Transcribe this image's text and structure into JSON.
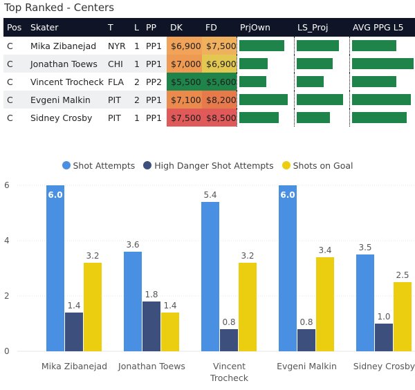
{
  "header": {
    "title": "Top Ranked - Centers"
  },
  "table": {
    "columns": [
      "Pos",
      "Skater",
      "T",
      "L",
      "PP",
      "DK",
      "FD",
      "PrjOwn",
      "LS_Proj",
      "AVG PPG L5"
    ],
    "rows": [
      {
        "pos": "C",
        "skater": "Mika Zibanejad",
        "team": "NYR",
        "line": "1",
        "pp": "PP1",
        "dk": "$6,900",
        "fd": "$7,500",
        "dk_color": "#f2a35a",
        "fd_color": "#f0b15e",
        "prjown": 0.8,
        "ls_proj": 0.78,
        "avg_ppg_l5": 0.68
      },
      {
        "pos": "C",
        "skater": "Jonathan Toews",
        "team": "CHI",
        "line": "1",
        "pp": "PP1",
        "dk": "$7,000",
        "fd": "$6,900",
        "dk_color": "#ee9a52",
        "fd_color": "#e2c850",
        "prjown": 0.5,
        "ls_proj": 0.66,
        "avg_ppg_l5": 0.95
      },
      {
        "pos": "C",
        "skater": "Vincent Trocheck",
        "team": "FLA",
        "line": "2",
        "pp": "PP2",
        "dk": "$5,500",
        "fd": "$5,600",
        "dk_color": "#1e8449",
        "fd_color": "#1e8449",
        "prjown": 0.48,
        "ls_proj": 0.5,
        "avg_ppg_l5": 0.68
      },
      {
        "pos": "C",
        "skater": "Evgeni Malkin",
        "team": "PIT",
        "line": "2",
        "pp": "PP1",
        "dk": "$7,100",
        "fd": "$8,200",
        "dk_color": "#ea8a4c",
        "fd_color": "#e77a4b",
        "prjown": 0.86,
        "ls_proj": 0.85,
        "avg_ppg_l5": 0.9
      },
      {
        "pos": "C",
        "skater": "Sidney Crosby",
        "team": "PIT",
        "line": "1",
        "pp": "PP1",
        "dk": "$7,500",
        "fd": "$8,500",
        "dk_color": "#e05a5a",
        "fd_color": "#e05a5a",
        "prjown": 0.7,
        "ls_proj": 0.62,
        "avg_ppg_l5": 0.84
      }
    ]
  },
  "colors": {
    "bar_green": "#1e8449",
    "header_bg": "#0f1526"
  },
  "chart_data": {
    "type": "bar",
    "categories": [
      "Mika Zibanejad",
      "Jonathan Toews",
      "Vincent Trocheck",
      "Evgeni Malkin",
      "Sidney Crosby"
    ],
    "category_display": [
      [
        "Mika Zibanejad"
      ],
      [
        "Jonathan Toews"
      ],
      [
        "Vincent",
        "Trocheck"
      ],
      [
        "Evgeni Malkin"
      ],
      [
        "Sidney Crosby"
      ]
    ],
    "series": [
      {
        "name": "Shot Attempts",
        "color": "#4a90e2",
        "values": [
          6.0,
          3.6,
          5.4,
          6.0,
          3.5
        ]
      },
      {
        "name": "High Danger Shot Attempts",
        "color": "#3d4f7c",
        "values": [
          1.4,
          1.8,
          0.8,
          0.8,
          1.0
        ]
      },
      {
        "name": "Shots on Goal",
        "color": "#ecce10",
        "values": [
          3.2,
          1.4,
          3.2,
          3.4,
          2.5
        ]
      }
    ],
    "value_labels": [
      [
        "6.0",
        "3.6",
        "5.4",
        "6.0",
        "3.5"
      ],
      [
        "1.4",
        "1.8",
        "0.8",
        "0.8",
        "1.0"
      ],
      [
        "3.2",
        "1.4",
        "3.2",
        "3.4",
        "2.5"
      ]
    ],
    "yticks": [
      "0",
      "2",
      "4",
      "6"
    ],
    "ylim": [
      0,
      6
    ],
    "legend_position": "top-center",
    "xlabel": "",
    "ylabel": ""
  }
}
